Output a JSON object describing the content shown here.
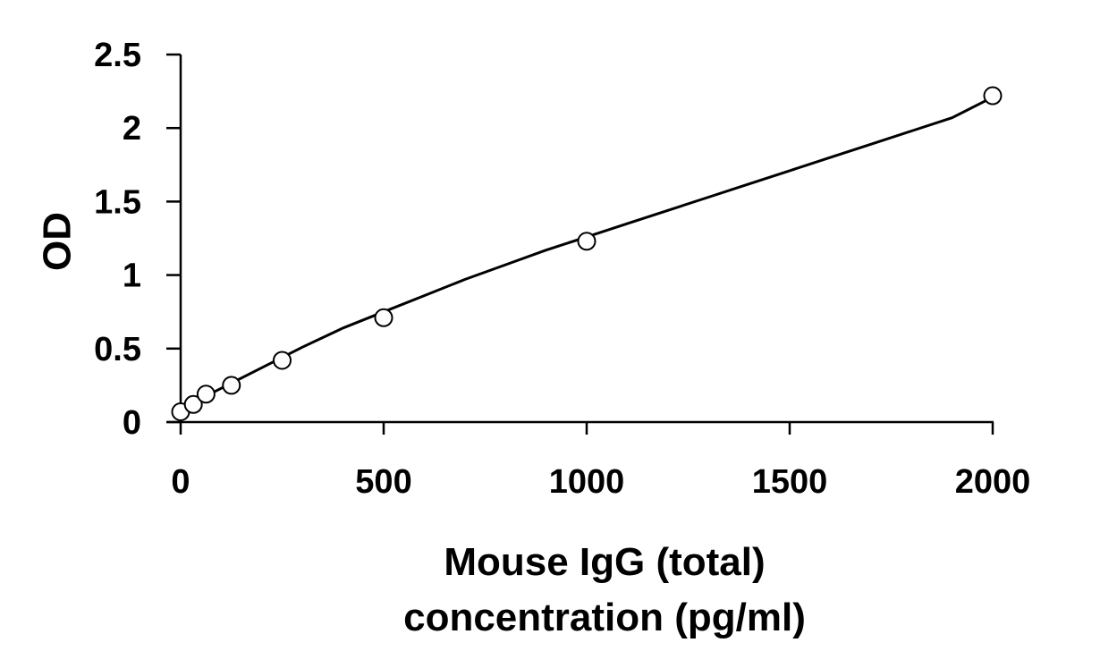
{
  "chart_data": {
    "type": "scatter",
    "title": "",
    "xlabel_lines": [
      "Mouse IgG (total)",
      "concentration (pg/ml)"
    ],
    "ylabel": "OD",
    "xlim": [
      0,
      2000
    ],
    "ylim": [
      0,
      2.5
    ],
    "x_ticks": [
      0,
      500,
      1000,
      1500,
      2000
    ],
    "y_ticks": [
      0,
      0.5,
      1,
      1.5,
      2,
      2.5
    ],
    "y_tick_labels": [
      "0",
      "0.5",
      "1",
      "1.5",
      "2",
      "2.5"
    ],
    "grid": false,
    "legend": "none",
    "colors": {
      "axis": "#000000",
      "marker": "#000000",
      "line": "#000000"
    },
    "series": [
      {
        "marker": "open-circle",
        "x": [
          0,
          31.25,
          62.5,
          125,
          250,
          500,
          1000,
          2000
        ],
        "y": [
          0.07,
          0.12,
          0.19,
          0.25,
          0.42,
          0.71,
          1.23,
          2.22
        ]
      }
    ],
    "trendline": {
      "type": "polynomial",
      "x": [
        0,
        100,
        200,
        300,
        400,
        500,
        600,
        700,
        800,
        900,
        1000,
        1100,
        1200,
        1300,
        1400,
        1500,
        1600,
        1700,
        1800,
        1900,
        2000
      ],
      "y": [
        0.09,
        0.23,
        0.37,
        0.51,
        0.64,
        0.75,
        0.86,
        0.97,
        1.07,
        1.17,
        1.26,
        1.35,
        1.44,
        1.53,
        1.62,
        1.71,
        1.8,
        1.89,
        1.98,
        2.07,
        2.21
      ]
    }
  }
}
